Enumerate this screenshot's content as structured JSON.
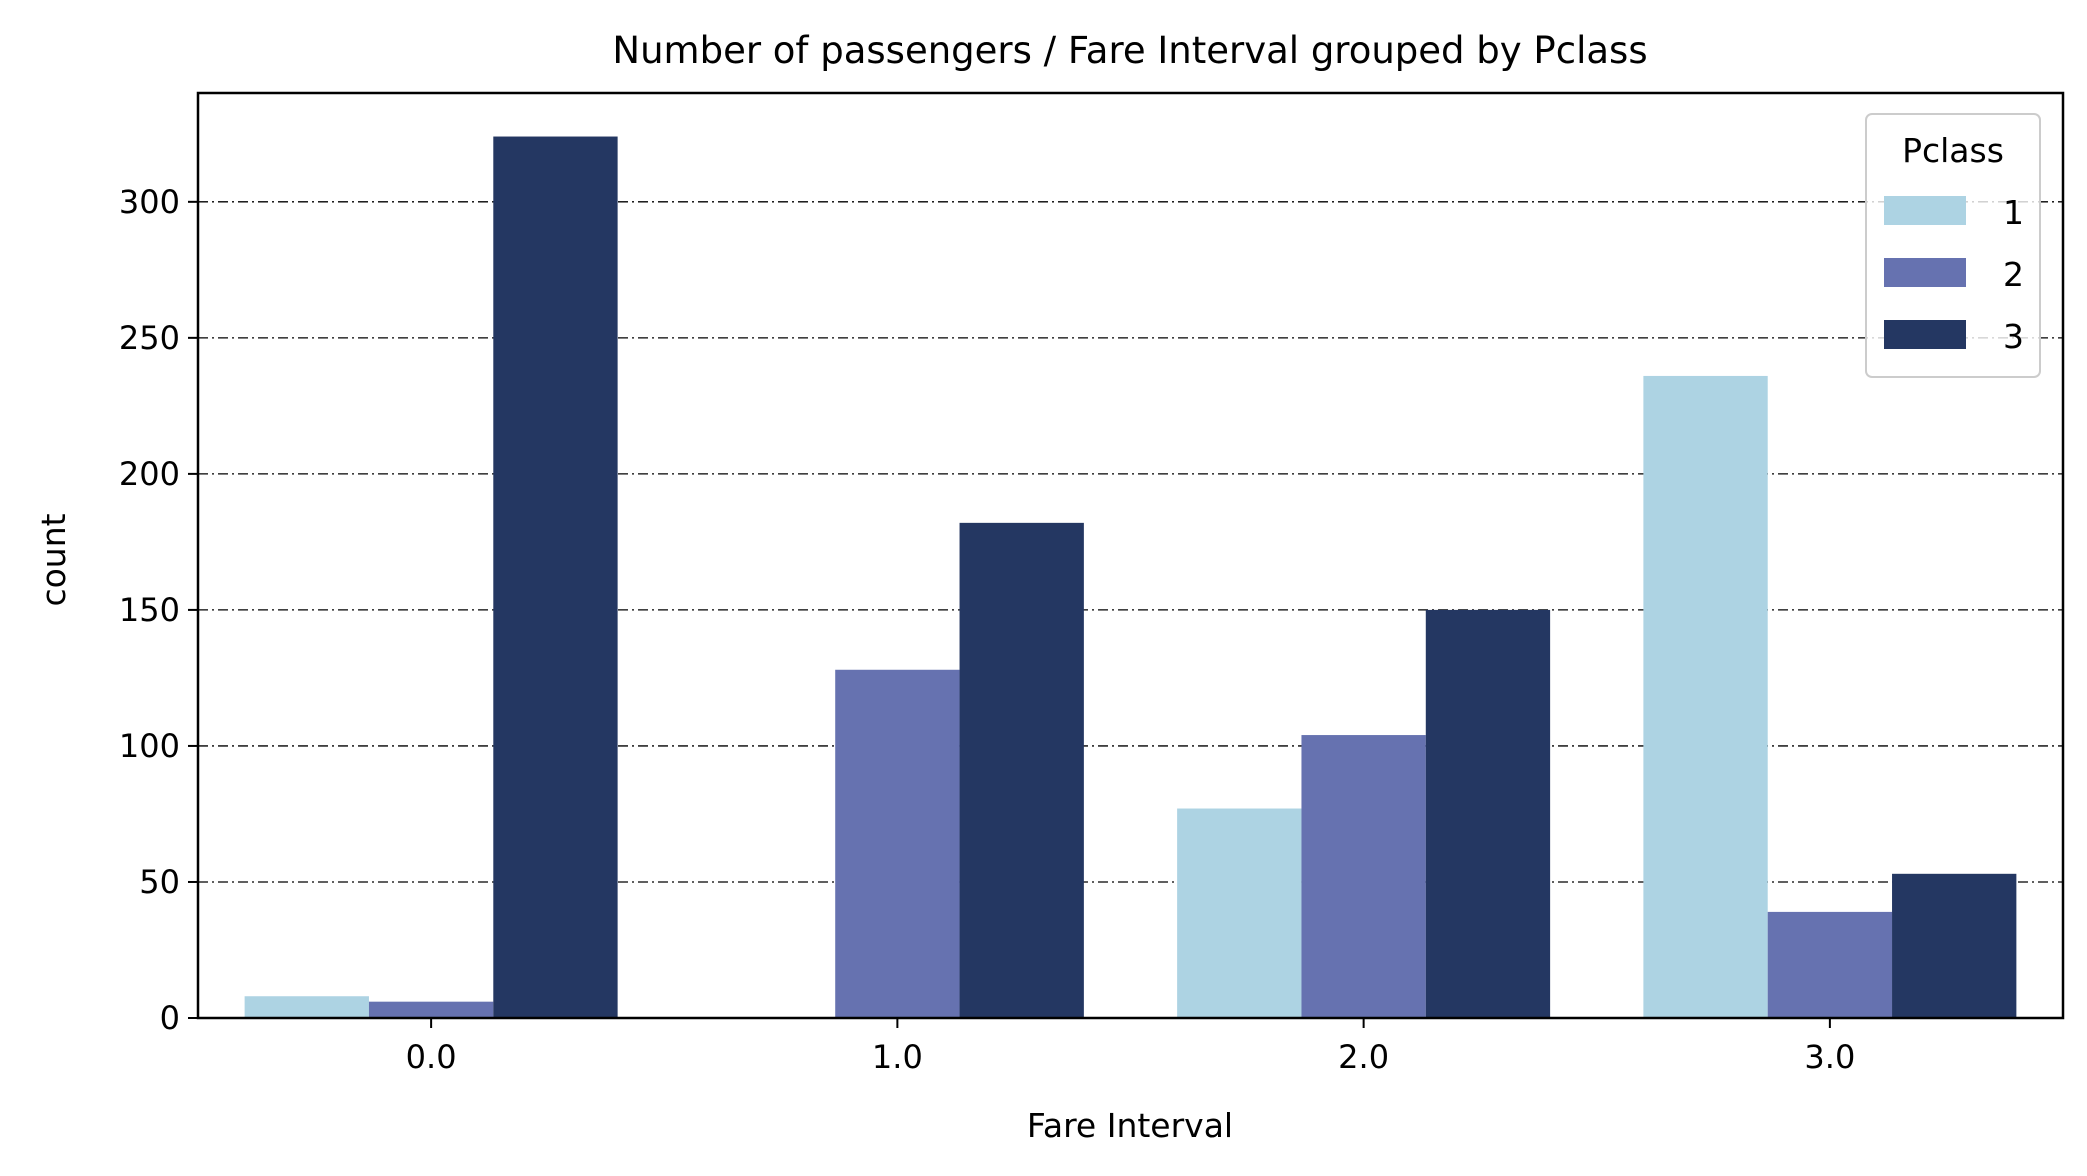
{
  "chart_data": {
    "type": "bar",
    "title": "Number of passengers / Fare Interval grouped by Pclass",
    "xlabel": "Fare Interval",
    "ylabel": "count",
    "categories": [
      "0.0",
      "1.0",
      "2.0",
      "3.0"
    ],
    "yticks": [
      0,
      50,
      100,
      150,
      200,
      250,
      300
    ],
    "ylim": [
      0,
      340
    ],
    "grid": "y, dash-dot",
    "legend": {
      "title": "Pclass",
      "placement": "top-right"
    },
    "series": [
      {
        "name": "1",
        "color": "#add3e3",
        "values": [
          8,
          0,
          77,
          236
        ]
      },
      {
        "name": "2",
        "color": "#6672b0",
        "values": [
          6,
          128,
          104,
          39
        ]
      },
      {
        "name": "3",
        "color": "#243762",
        "values": [
          324,
          182,
          150,
          53
        ]
      }
    ]
  }
}
